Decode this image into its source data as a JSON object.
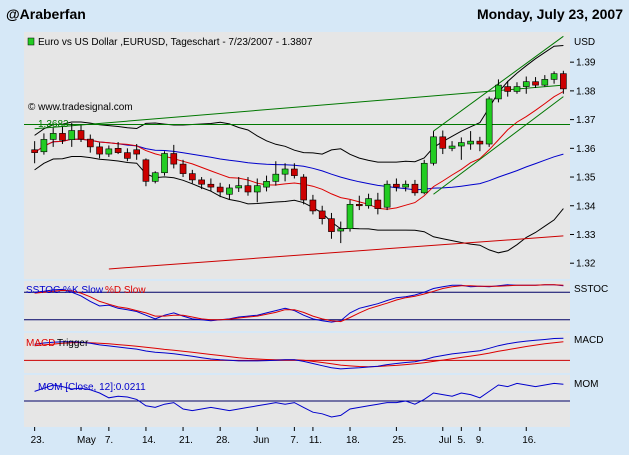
{
  "header": {
    "left": "@Araberfan",
    "right": "Monday, July 23, 2007"
  },
  "colors": {
    "background": "#d6e8f7",
    "panel": "#e6e6e6",
    "up": "#22cc22",
    "down": "#cc0000",
    "bands": "#000000",
    "ma_red": "#dd0000",
    "ma_blue": "#0000cc",
    "green_line": "#007700",
    "stoch_k": "#0000cc",
    "stoch_d": "#dd0000",
    "macd": "#0000cc",
    "trigger": "#dd0000",
    "mom": "#0000cc"
  },
  "chart_data": {
    "type": "candlestick",
    "title": "Euro vs US Dollar ,EURUSD, Tageschart - 7/23/2007 - 1.3807",
    "watermark": "© www.tradesignal.com",
    "price_unit": "USD",
    "y_ticks": [
      "1.39",
      "1.38",
      "1.37",
      "1.36",
      "1.35",
      "1.34",
      "1.33",
      "1.32"
    ],
    "ylim": [
      1.3145,
      1.4005
    ],
    "annotation": "1.3683",
    "horizontal_level": 1.3683,
    "x_labels": [
      "23.",
      "May",
      "7.",
      "14.",
      "21.",
      "28.",
      "Jun",
      "7.",
      "11.",
      "18.",
      "25.",
      "Jul",
      "5.",
      "9.",
      "16."
    ],
    "x_label_bar_index": [
      0,
      5,
      8,
      12,
      16,
      20,
      24,
      28,
      30,
      34,
      39,
      44,
      46,
      48,
      53
    ],
    "ohlc": [
      [
        1.3595,
        1.3625,
        1.3548,
        1.3585
      ],
      [
        1.3588,
        1.3652,
        1.3578,
        1.3631
      ],
      [
        1.3631,
        1.3672,
        1.3605,
        1.3652
      ],
      [
        1.3652,
        1.3675,
        1.3615,
        1.3628
      ],
      [
        1.363,
        1.3688,
        1.3605,
        1.3662
      ],
      [
        1.3662,
        1.368,
        1.3622,
        1.3632
      ],
      [
        1.3632,
        1.3648,
        1.3585,
        1.3605
      ],
      [
        1.3605,
        1.362,
        1.3565,
        1.358
      ],
      [
        1.358,
        1.361,
        1.357,
        1.3598
      ],
      [
        1.36,
        1.3622,
        1.358,
        1.3585
      ],
      [
        1.3585,
        1.36,
        1.3555,
        1.3565
      ],
      [
        1.3595,
        1.3615,
        1.356,
        1.358
      ],
      [
        1.356,
        1.3565,
        1.3468,
        1.3485
      ],
      [
        1.3485,
        1.352,
        1.3478,
        1.3515
      ],
      [
        1.3515,
        1.359,
        1.3505,
        1.3582
      ],
      [
        1.3582,
        1.3612,
        1.353,
        1.3545
      ],
      [
        1.3545,
        1.356,
        1.35,
        1.3512
      ],
      [
        1.3512,
        1.3525,
        1.3478,
        1.349
      ],
      [
        1.349,
        1.35,
        1.3458,
        1.3475
      ],
      [
        1.3475,
        1.3495,
        1.345,
        1.3465
      ],
      [
        1.3465,
        1.348,
        1.343,
        1.3448
      ],
      [
        1.344,
        1.3475,
        1.342,
        1.3462
      ],
      [
        1.3462,
        1.35,
        1.3448,
        1.347
      ],
      [
        1.347,
        1.35,
        1.3435,
        1.3448
      ],
      [
        1.3448,
        1.3495,
        1.3412,
        1.347
      ],
      [
        1.3465,
        1.3505,
        1.345,
        1.3485
      ],
      [
        1.3485,
        1.3555,
        1.347,
        1.351
      ],
      [
        1.351,
        1.3548,
        1.3485,
        1.3528
      ],
      [
        1.3528,
        1.3548,
        1.3495,
        1.3505
      ],
      [
        1.35,
        1.351,
        1.3405,
        1.342
      ],
      [
        1.342,
        1.3438,
        1.337,
        1.3382
      ],
      [
        1.3382,
        1.34,
        1.3335,
        1.3355
      ],
      [
        1.3355,
        1.3375,
        1.3285,
        1.331
      ],
      [
        1.3312,
        1.3345,
        1.327,
        1.332
      ],
      [
        1.332,
        1.342,
        1.331,
        1.3405
      ],
      [
        1.3405,
        1.3435,
        1.3385,
        1.34
      ],
      [
        1.34,
        1.3442,
        1.339,
        1.3425
      ],
      [
        1.342,
        1.3445,
        1.337,
        1.339
      ],
      [
        1.3395,
        1.3488,
        1.3385,
        1.3475
      ],
      [
        1.3475,
        1.3495,
        1.345,
        1.3465
      ],
      [
        1.3465,
        1.3488,
        1.345,
        1.3475
      ],
      [
        1.3475,
        1.349,
        1.3435,
        1.3445
      ],
      [
        1.3445,
        1.356,
        1.344,
        1.3548
      ],
      [
        1.3548,
        1.366,
        1.354,
        1.364
      ],
      [
        1.364,
        1.3662,
        1.358,
        1.36
      ],
      [
        1.36,
        1.3625,
        1.359,
        1.3608
      ],
      [
        1.3608,
        1.3638,
        1.356,
        1.362
      ],
      [
        1.3615,
        1.366,
        1.3595,
        1.3625
      ],
      [
        1.3625,
        1.364,
        1.359,
        1.3615
      ],
      [
        1.3615,
        1.378,
        1.3605,
        1.3772
      ],
      [
        1.3772,
        1.384,
        1.376,
        1.382
      ],
      [
        1.3815,
        1.3835,
        1.378,
        1.3798
      ],
      [
        1.3798,
        1.383,
        1.379,
        1.3815
      ],
      [
        1.3815,
        1.385,
        1.379,
        1.3832
      ],
      [
        1.3832,
        1.3848,
        1.381,
        1.382
      ],
      [
        1.382,
        1.3855,
        1.3815,
        1.384
      ],
      [
        1.384,
        1.3868,
        1.3825,
        1.386
      ],
      [
        1.386,
        1.387,
        1.379,
        1.3807
      ]
    ],
    "stoch": {
      "label": "SSTOC %K Slow",
      "label2": "%D Slow",
      "axis": "SSTOC",
      "k": [
        80,
        82,
        85,
        86,
        80,
        72,
        60,
        50,
        52,
        45,
        42,
        38,
        30,
        22,
        30,
        35,
        28,
        22,
        20,
        18,
        20,
        22,
        26,
        28,
        30,
        35,
        40,
        45,
        40,
        30,
        22,
        18,
        15,
        18,
        35,
        45,
        50,
        55,
        62,
        68,
        70,
        74,
        80,
        88,
        92,
        95,
        95,
        92,
        93,
        92,
        94,
        96,
        95,
        95,
        95,
        96,
        96,
        94
      ],
      "d": [
        78,
        80,
        82,
        84,
        83,
        78,
        70,
        60,
        54,
        48,
        45,
        40,
        35,
        28,
        28,
        30,
        30,
        26,
        22,
        20,
        20,
        21,
        24,
        26,
        28,
        32,
        36,
        42,
        42,
        36,
        28,
        22,
        18,
        16,
        25,
        35,
        44,
        50,
        56,
        63,
        68,
        71,
        76,
        82,
        88,
        92,
        94,
        94,
        93,
        93,
        93,
        94,
        95,
        95,
        95,
        96,
        96,
        95
      ]
    },
    "macd": {
      "label": "MACD",
      "label2": "Trigger",
      "axis": "MACD",
      "macd": [
        0.006,
        0.0065,
        0.0068,
        0.007,
        0.007,
        0.0068,
        0.0064,
        0.0058,
        0.0054,
        0.005,
        0.0046,
        0.0042,
        0.0035,
        0.003,
        0.0028,
        0.0025,
        0.002,
        0.0015,
        0.001,
        0.0005,
        0.0002,
        0.0,
        -0.0002,
        -0.0002,
        -0.0002,
        -0.0001,
        0.0,
        0.0002,
        0.0002,
        -0.0004,
        -0.0012,
        -0.002,
        -0.0028,
        -0.0032,
        -0.003,
        -0.0028,
        -0.0025,
        -0.0022,
        -0.0016,
        -0.0012,
        -0.0008,
        -0.0005,
        0.0002,
        0.0012,
        0.0018,
        0.0024,
        0.0028,
        0.0032,
        0.0036,
        0.0045,
        0.0055,
        0.0062,
        0.0068,
        0.0072,
        0.0075,
        0.0078,
        0.0082,
        0.0083
      ],
      "trigger": [
        0.0055,
        0.0058,
        0.0061,
        0.0064,
        0.0066,
        0.0067,
        0.0066,
        0.0064,
        0.0062,
        0.0059,
        0.0056,
        0.0053,
        0.0049,
        0.0045,
        0.0041,
        0.0038,
        0.0034,
        0.003,
        0.0026,
        0.0022,
        0.0018,
        0.0014,
        0.001,
        0.0007,
        0.0005,
        0.0003,
        0.0002,
        0.0002,
        0.0002,
        0.0,
        -0.0004,
        -0.0008,
        -0.0013,
        -0.0018,
        -0.0021,
        -0.0023,
        -0.0024,
        -0.0023,
        -0.0021,
        -0.0019,
        -0.0016,
        -0.0013,
        -0.0009,
        -0.0004,
        0.0001,
        0.0006,
        0.0011,
        0.0016,
        0.0021,
        0.0027,
        0.0034,
        0.004,
        0.0046,
        0.0052,
        0.0057,
        0.0062,
        0.0066,
        0.007
      ]
    },
    "mom": {
      "label": "MOM [Close, 12]:0.0211",
      "axis": "MOM",
      "values": [
        0.012,
        0.016,
        0.02,
        0.018,
        0.015,
        0.016,
        0.014,
        0.01,
        0.004,
        0.006,
        0.005,
        0.002,
        -0.006,
        -0.008,
        -0.004,
        -0.002,
        -0.01,
        -0.012,
        -0.01,
        -0.008,
        -0.01,
        -0.012,
        -0.01,
        -0.008,
        -0.006,
        -0.004,
        -0.002,
        -0.004,
        -0.002,
        -0.008,
        -0.014,
        -0.016,
        -0.02,
        -0.018,
        -0.01,
        -0.008,
        -0.006,
        -0.004,
        -0.002,
        -0.002,
        0.0,
        -0.004,
        0.002,
        0.01,
        0.008,
        0.006,
        0.01,
        0.008,
        0.004,
        0.012,
        0.02,
        0.018,
        0.022,
        0.02,
        0.018,
        0.02,
        0.022,
        0.021
      ]
    }
  }
}
